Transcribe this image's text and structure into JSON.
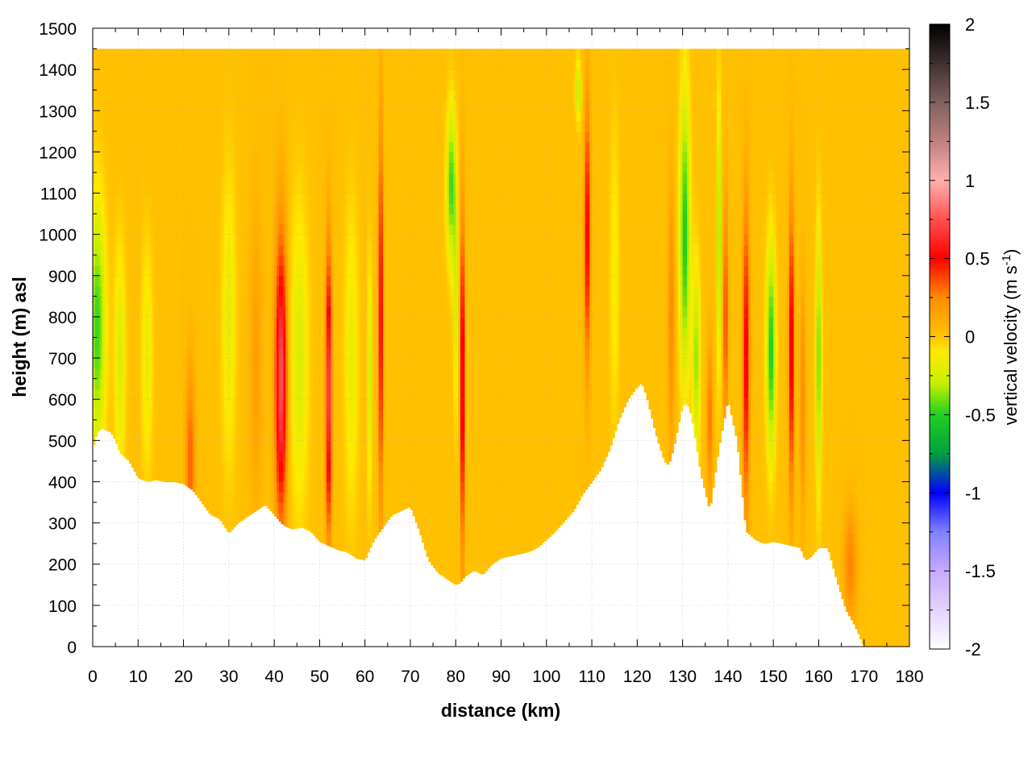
{
  "chart_data": {
    "type": "heatmap",
    "title": "",
    "xlabel": "distance (km)",
    "ylabel": "height (m) asl",
    "xlim": [
      0,
      180
    ],
    "ylim": [
      0,
      1500
    ],
    "x_ticks": [
      "0",
      "10",
      "20",
      "30",
      "40",
      "50",
      "60",
      "70",
      "80",
      "90",
      "100",
      "110",
      "120",
      "130",
      "140",
      "150",
      "160",
      "170",
      "180"
    ],
    "y_ticks": [
      "0",
      "100",
      "200",
      "300",
      "400",
      "500",
      "600",
      "700",
      "800",
      "900",
      "1000",
      "1100",
      "1200",
      "1300",
      "1400",
      "1500"
    ],
    "grid": true,
    "colorbar": {
      "label_main": "vertical velocity (m s",
      "label_sup": "-1",
      "label_close": ")",
      "range": [
        -2,
        2
      ],
      "ticks": [
        "2",
        "1.5",
        "1",
        "0.5",
        "0",
        "-0.5",
        "-1",
        "-1.5",
        "-2"
      ],
      "stops": [
        {
          "v": -2.0,
          "color": "#ffffff"
        },
        {
          "v": -1.5,
          "color": "#c8a8ff"
        },
        {
          "v": -1.25,
          "color": "#8080ff"
        },
        {
          "v": -1.0,
          "color": "#0000ff"
        },
        {
          "v": -0.75,
          "color": "#00a040"
        },
        {
          "v": -0.5,
          "color": "#20d020"
        },
        {
          "v": -0.3,
          "color": "#c8f000"
        },
        {
          "v": -0.1,
          "color": "#ffea00"
        },
        {
          "v": 0.0,
          "color": "#ffc400"
        },
        {
          "v": 0.25,
          "color": "#ff8c00"
        },
        {
          "v": 0.5,
          "color": "#ff0000"
        },
        {
          "v": 0.75,
          "color": "#ff5050"
        },
        {
          "v": 1.0,
          "color": "#ffb0b0"
        },
        {
          "v": 1.25,
          "color": "#c08080"
        },
        {
          "v": 1.5,
          "color": "#806060"
        },
        {
          "v": 2.0,
          "color": "#000000"
        }
      ]
    },
    "terrain_profile": {
      "x": [
        0,
        1,
        2,
        3,
        4,
        5,
        6,
        7,
        8,
        9,
        10,
        12,
        14,
        16,
        18,
        20,
        22,
        24,
        26,
        28,
        30,
        32,
        34,
        36,
        38,
        40,
        42,
        44,
        46,
        48,
        50,
        52,
        54,
        56,
        58,
        60,
        62,
        64,
        66,
        68,
        70,
        72,
        74,
        76,
        78,
        80,
        81,
        82,
        84,
        86,
        88,
        90,
        92,
        94,
        96,
        98,
        100,
        102,
        104,
        106,
        108,
        110,
        112,
        114,
        116,
        118,
        120,
        121,
        122,
        124,
        126,
        127,
        128,
        130,
        131,
        132,
        134,
        136,
        138,
        140,
        142,
        144,
        146,
        148,
        150,
        152,
        154,
        156,
        157,
        158,
        160,
        162,
        164,
        166,
        168,
        170,
        175,
        180
      ],
      "height": [
        480,
        520,
        530,
        525,
        520,
        500,
        470,
        460,
        450,
        430,
        410,
        400,
        405,
        400,
        400,
        395,
        380,
        350,
        320,
        310,
        275,
        300,
        315,
        330,
        345,
        320,
        295,
        285,
        290,
        280,
        255,
        245,
        235,
        230,
        215,
        210,
        260,
        290,
        320,
        330,
        340,
        280,
        210,
        180,
        165,
        150,
        155,
        170,
        185,
        175,
        200,
        215,
        220,
        225,
        230,
        240,
        260,
        280,
        305,
        330,
        370,
        400,
        430,
        480,
        550,
        600,
        630,
        640,
        610,
        520,
        450,
        440,
        480,
        585,
        590,
        560,
        420,
        330,
        480,
        600,
        500,
        280,
        260,
        250,
        255,
        250,
        245,
        240,
        210,
        215,
        240,
        240,
        160,
        90,
        50,
        0,
        0,
        0
      ]
    },
    "top_height": 1440,
    "background_velocity": 0.02,
    "features": [
      {
        "x": 1,
        "w": 1.8,
        "center_h": 780,
        "half_h": 320,
        "velocity": -0.5
      },
      {
        "x": 6,
        "w": 1.2,
        "center_h": 700,
        "half_h": 300,
        "velocity": -0.25
      },
      {
        "x": 12,
        "w": 1.2,
        "center_h": 700,
        "half_h": 300,
        "velocity": -0.2
      },
      {
        "x": 21.5,
        "w": 1.0,
        "center_h": 450,
        "half_h": 250,
        "velocity": 0.32
      },
      {
        "x": 30,
        "w": 1.5,
        "center_h": 800,
        "half_h": 400,
        "velocity": -0.2
      },
      {
        "x": 36,
        "w": 1.4,
        "center_h": 700,
        "half_h": 400,
        "velocity": 0.15
      },
      {
        "x": 41.5,
        "w": 1.3,
        "center_h": 650,
        "half_h": 380,
        "velocity": 0.75
      },
      {
        "x": 45.5,
        "w": 2.0,
        "center_h": 700,
        "half_h": 400,
        "velocity": -0.25
      },
      {
        "x": 52,
        "w": 0.6,
        "center_h": 620,
        "half_h": 360,
        "velocity": 0.8
      },
      {
        "x": 57,
        "w": 1.5,
        "center_h": 700,
        "half_h": 400,
        "velocity": -0.2
      },
      {
        "x": 63.5,
        "w": 0.45,
        "center_h": 800,
        "half_h": 500,
        "velocity": 0.6
      },
      {
        "x": 61,
        "w": 0.5,
        "center_h": 650,
        "half_h": 300,
        "velocity": -0.3
      },
      {
        "x": 79,
        "w": 1.0,
        "center_h": 1120,
        "half_h": 200,
        "velocity": -0.5
      },
      {
        "x": 81.5,
        "w": 0.35,
        "center_h": 640,
        "half_h": 440,
        "velocity": 0.85
      },
      {
        "x": 80,
        "w": 0.5,
        "center_h": 850,
        "half_h": 300,
        "velocity": -0.3
      },
      {
        "x": 107,
        "w": 0.6,
        "center_h": 1350,
        "half_h": 80,
        "velocity": -0.35
      },
      {
        "x": 109,
        "w": 0.6,
        "center_h": 1000,
        "half_h": 350,
        "velocity": 0.55
      },
      {
        "x": 115,
        "w": 1.0,
        "center_h": 900,
        "half_h": 400,
        "velocity": -0.15
      },
      {
        "x": 130.5,
        "w": 1.1,
        "center_h": 1000,
        "half_h": 380,
        "velocity": -0.55
      },
      {
        "x": 127.5,
        "w": 0.7,
        "center_h": 800,
        "half_h": 350,
        "velocity": 0.25
      },
      {
        "x": 133,
        "w": 0.8,
        "center_h": 700,
        "half_h": 250,
        "velocity": -0.4
      },
      {
        "x": 136,
        "w": 0.6,
        "center_h": 550,
        "half_h": 200,
        "velocity": 0.3
      },
      {
        "x": 138,
        "w": 0.45,
        "center_h": 1000,
        "half_h": 350,
        "velocity": -0.45
      },
      {
        "x": 139.5,
        "w": 0.5,
        "center_h": 800,
        "half_h": 300,
        "velocity": 0.4
      },
      {
        "x": 144,
        "w": 0.7,
        "center_h": 700,
        "half_h": 400,
        "velocity": 0.55
      },
      {
        "x": 149.5,
        "w": 1.0,
        "center_h": 720,
        "half_h": 280,
        "velocity": -0.55
      },
      {
        "x": 154,
        "w": 0.55,
        "center_h": 720,
        "half_h": 380,
        "velocity": 0.6
      },
      {
        "x": 156.5,
        "w": 0.6,
        "center_h": 600,
        "half_h": 300,
        "velocity": 0.25
      },
      {
        "x": 160,
        "w": 0.6,
        "center_h": 700,
        "half_h": 350,
        "velocity": -0.45
      },
      {
        "x": 167,
        "w": 1.5,
        "center_h": 200,
        "half_h": 150,
        "velocity": 0.25
      }
    ]
  }
}
